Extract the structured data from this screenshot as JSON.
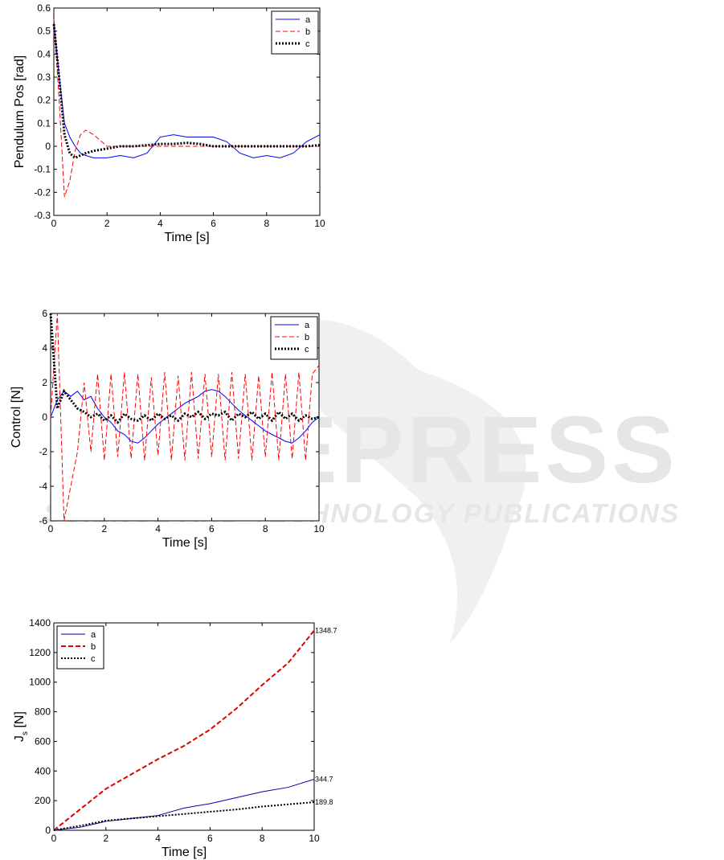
{
  "watermark": {
    "title": "SCITEPRESS",
    "subtitle": "SCIENCE AND TECHNOLOGY PUBLICATIONS"
  },
  "chart_data": [
    {
      "type": "line",
      "xlabel": "Time [s]",
      "ylabel": "Pendulum Pos [rad]",
      "x": [
        0,
        0.2,
        0.4,
        0.6,
        0.8,
        1,
        1.2,
        1.5,
        2,
        2.5,
        3,
        3.5,
        4,
        4.5,
        5,
        5.5,
        6,
        6.5,
        7,
        7.5,
        8,
        8.5,
        9,
        9.5,
        10
      ],
      "xlim": [
        0,
        10
      ],
      "xticks": [
        0,
        2,
        4,
        6,
        8,
        10
      ],
      "ylim": [
        -0.3,
        0.6
      ],
      "yticks": [
        -0.3,
        -0.2,
        -0.1,
        0,
        0.1,
        0.2,
        0.3,
        0.4,
        0.5,
        0.6
      ],
      "legend": "upper right",
      "series": [
        {
          "name": "a",
          "color": "#0000ff",
          "dash": "solid",
          "width": 1,
          "values": [
            0.55,
            0.3,
            0.1,
            0.04,
            0.0,
            -0.03,
            -0.04,
            -0.05,
            -0.05,
            -0.04,
            -0.05,
            -0.03,
            0.04,
            0.05,
            0.04,
            0.04,
            0.04,
            0.02,
            -0.03,
            -0.05,
            -0.04,
            -0.05,
            -0.03,
            0.02,
            0.05
          ]
        },
        {
          "name": "b",
          "color": "#ff0000",
          "dash": "dashed",
          "width": 1,
          "values": [
            0.55,
            0.2,
            -0.22,
            -0.15,
            -0.02,
            0.05,
            0.07,
            0.05,
            0,
            0,
            0,
            0,
            0,
            0,
            0,
            0,
            0,
            0,
            0,
            0,
            0,
            0,
            0,
            0,
            0
          ]
        },
        {
          "name": "c",
          "color": "#000000",
          "dash": "dotted",
          "width": 3,
          "values": [
            0.53,
            0.3,
            0.05,
            -0.03,
            -0.05,
            -0.04,
            -0.03,
            -0.02,
            -0.01,
            0,
            0,
            0.005,
            0.01,
            0.01,
            0.015,
            0.01,
            0,
            0,
            0,
            0,
            0,
            0,
            0,
            0,
            0.005
          ]
        }
      ]
    },
    {
      "type": "line",
      "xlabel": "Time [s]",
      "ylabel": "Control [N]",
      "x": [
        0,
        0.25,
        0.5,
        0.75,
        1,
        1.25,
        1.5,
        1.75,
        2,
        2.25,
        2.5,
        2.75,
        3,
        3.25,
        3.5,
        3.75,
        4,
        4.25,
        4.5,
        4.75,
        5,
        5.25,
        5.5,
        5.75,
        6,
        6.25,
        6.5,
        6.75,
        7,
        7.25,
        7.5,
        7.75,
        8,
        8.25,
        8.5,
        8.75,
        9,
        9.25,
        9.5,
        9.75,
        10
      ],
      "xlim": [
        0,
        10
      ],
      "xticks": [
        0,
        2,
        4,
        6,
        8,
        10
      ],
      "ylim": [
        -6,
        6
      ],
      "yticks": [
        -6,
        -4,
        -2,
        0,
        2,
        4,
        6
      ],
      "legend": "upper right",
      "series": [
        {
          "name": "a",
          "color": "#0000ff",
          "dash": "solid",
          "width": 1,
          "values": [
            0,
            1,
            1.5,
            1.2,
            1.5,
            1,
            1.2,
            0.5,
            0,
            -0.3,
            -0.8,
            -1,
            -1.4,
            -1.5,
            -1.2,
            -0.8,
            -0.4,
            -0.1,
            0.2,
            0.5,
            0.8,
            1,
            1.2,
            1.5,
            1.6,
            1.5,
            1.2,
            0.8,
            0.4,
            0.1,
            -0.2,
            -0.5,
            -0.8,
            -1,
            -1.2,
            -1.4,
            -1.5,
            -1.2,
            -0.8,
            -0.3,
            0
          ]
        },
        {
          "name": "b",
          "color": "#ff0000",
          "dash": "dashed",
          "width": 1,
          "values": [
            0,
            6,
            -6,
            -4,
            -2,
            2,
            -2,
            2.5,
            -2.5,
            2.5,
            -2.3,
            2.6,
            -2.4,
            2.5,
            -2.5,
            2.3,
            -2.2,
            2.6,
            -2.5,
            2.4,
            -2.5,
            2.6,
            -2.4,
            2.5,
            -2.3,
            2.5,
            -2.5,
            2.6,
            -2.4,
            2.5,
            -2.5,
            2.4,
            -2.3,
            2.6,
            -2.5,
            2.5,
            -2.4,
            2.6,
            -2.5,
            2.5,
            3
          ]
        },
        {
          "name": "c",
          "color": "#000000",
          "dash": "dotted",
          "width": 3,
          "values": [
            6,
            0.5,
            1.5,
            1,
            0.5,
            0.3,
            0,
            0.2,
            -0.2,
            0.1,
            -0.3,
            0.2,
            -0.1,
            -0.2,
            0.1,
            -0.2,
            0.2,
            -0.1,
            0.1,
            -0.2,
            0.2,
            0,
            0.3,
            -0.1,
            0.2,
            0.1,
            0.3,
            -0.2,
            0.2,
            0,
            0.3,
            -0.1,
            0.2,
            -0.2,
            0.3,
            -0.1,
            0.2,
            -0.2,
            0.1,
            -0.1,
            0
          ]
        }
      ]
    },
    {
      "type": "line",
      "xlabel": "Time [s]",
      "ylabel_main": "J",
      "ylabel_sub": "s",
      "ylabel_rest": " [N]",
      "x": [
        0,
        1,
        2,
        3,
        4,
        5,
        6,
        7,
        8,
        9,
        10
      ],
      "xlim": [
        0,
        10
      ],
      "xticks": [
        0,
        2,
        4,
        6,
        8,
        10
      ],
      "ylim": [
        0,
        1400
      ],
      "yticks": [
        0,
        200,
        400,
        600,
        800,
        1000,
        1200,
        1400
      ],
      "legend": "upper left",
      "end_labels": true,
      "series": [
        {
          "name": "a",
          "color": "#0000aa",
          "dash": "solid",
          "width": 1,
          "values": [
            0,
            20,
            60,
            80,
            100,
            150,
            180,
            220,
            260,
            290,
            344.7
          ]
        },
        {
          "name": "b",
          "color": "#dd0000",
          "dash": "dashed",
          "width": 2,
          "values": [
            0,
            140,
            280,
            380,
            480,
            570,
            680,
            820,
            980,
            1130,
            1348.7
          ]
        },
        {
          "name": "c",
          "color": "#000000",
          "dash": "dotted",
          "width": 2,
          "values": [
            0,
            30,
            65,
            80,
            95,
            110,
            125,
            140,
            160,
            175,
            189.8
          ]
        }
      ]
    }
  ]
}
